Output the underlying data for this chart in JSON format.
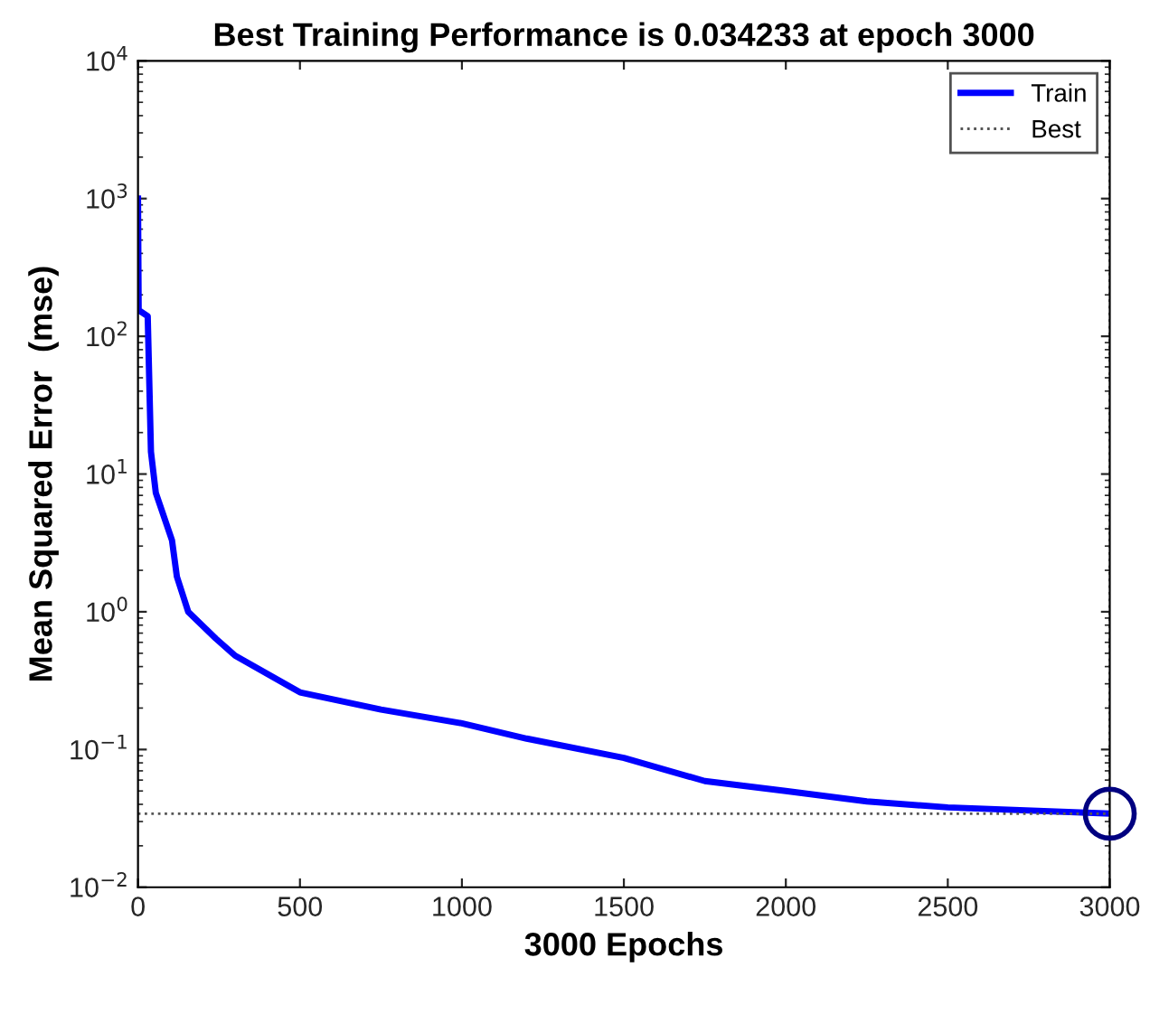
{
  "chart_data": {
    "type": "line",
    "title": "Best Training Performance is 0.034233 at epoch 3000",
    "xlabel": "3000 Epochs",
    "ylabel": "Mean Squared Error  (mse)",
    "series": [
      {
        "name": "Train",
        "color": "#0000ff",
        "x": [
          0,
          2,
          30,
          40,
          55,
          105,
          120,
          155,
          240,
          300,
          500,
          750,
          1000,
          1200,
          1500,
          1750,
          2000,
          2250,
          2500,
          3000
        ],
        "values": [
          1000,
          155,
          140,
          14.5,
          7.3,
          3.3,
          1.8,
          1.0,
          0.64,
          0.48,
          0.26,
          0.195,
          0.155,
          0.12,
          0.087,
          0.059,
          0.05,
          0.042,
          0.038,
          0.034233
        ]
      },
      {
        "type": "scatter",
        "marker": "circle",
        "color": "#000080",
        "x": [
          3000
        ],
        "values": [
          0.034233
        ]
      }
    ],
    "ref_lines": [
      {
        "axis": "y",
        "value": 0.034233,
        "label": "Best",
        "line_style": "dotted",
        "color": "#555555"
      },
      {
        "axis": "x",
        "value": 3000,
        "line_style": "dotted",
        "color": "#555555"
      }
    ],
    "log": "y",
    "xlim": [
      0,
      3000
    ],
    "ylim": [
      0.01,
      10000
    ],
    "xticks": [
      0,
      500,
      1000,
      1500,
      2000,
      2500,
      3000
    ],
    "yticks": [
      {
        "value": 0.01,
        "label": "10$^{−2}$"
      },
      {
        "value": 0.1,
        "label": "10$^{−1}$"
      },
      {
        "value": 1,
        "label": "10$^{0}$"
      },
      {
        "value": 10,
        "label": "10$^{1}$"
      },
      {
        "value": 100,
        "label": "10$^{2}$"
      },
      {
        "value": 1000,
        "label": "10$^{3}$"
      },
      {
        "value": 10000,
        "label": "10$^{4}$"
      }
    ],
    "grid": false,
    "legend": "top right",
    "line_style": "solid"
  }
}
